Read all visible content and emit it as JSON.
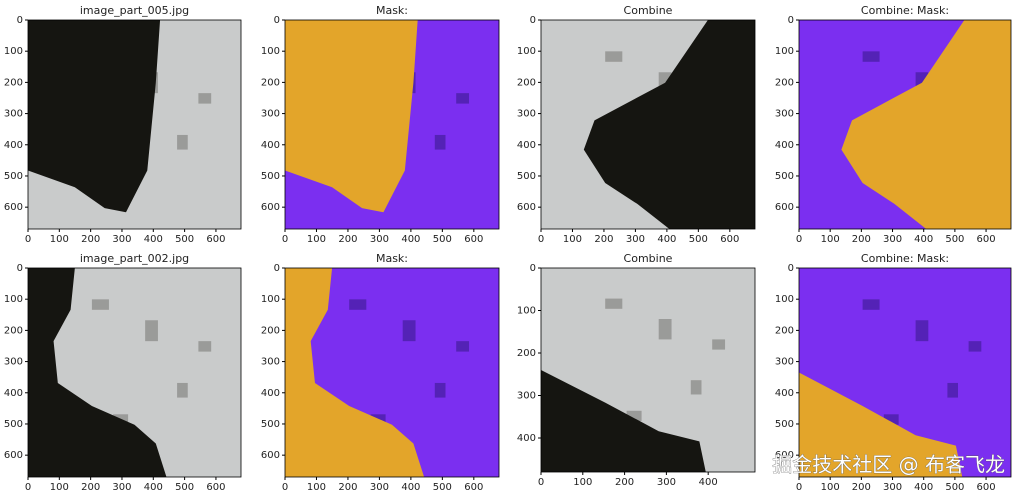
{
  "chart_data": [
    {
      "type": "image",
      "title": "image_part_005.jpg",
      "xlim": [
        0,
        680
      ],
      "ylim": [
        670,
        0
      ],
      "xticks": [
        0,
        100,
        200,
        300,
        400,
        500,
        600
      ],
      "yticks": [
        0,
        100,
        200,
        300,
        400,
        500,
        600
      ]
    },
    {
      "type": "image",
      "title": "Mask:",
      "xlim": [
        0,
        680
      ],
      "ylim": [
        670,
        0
      ],
      "xticks": [
        0,
        100,
        200,
        300,
        400,
        500,
        600
      ],
      "yticks": [
        0,
        100,
        200,
        300,
        400,
        500,
        600
      ]
    },
    {
      "type": "image",
      "title": "Combine",
      "xlim": [
        0,
        680
      ],
      "ylim": [
        670,
        0
      ],
      "xticks": [
        0,
        100,
        200,
        300,
        400,
        500,
        600
      ],
      "yticks": [
        0,
        100,
        200,
        300,
        400,
        500,
        600
      ]
    },
    {
      "type": "image",
      "title": "Combine: Mask:",
      "xlim": [
        0,
        680
      ],
      "ylim": [
        670,
        0
      ],
      "xticks": [
        0,
        100,
        200,
        300,
        400,
        500,
        600
      ],
      "yticks": [
        0,
        100,
        200,
        300,
        400,
        500,
        600
      ]
    },
    {
      "type": "image",
      "title": "image_part_002.jpg",
      "xlim": [
        0,
        680
      ],
      "ylim": [
        670,
        0
      ],
      "xticks": [
        0,
        100,
        200,
        300,
        400,
        500,
        600
      ],
      "yticks": [
        0,
        100,
        200,
        300,
        400,
        500,
        600
      ]
    },
    {
      "type": "image",
      "title": "Mask:",
      "xlim": [
        0,
        680
      ],
      "ylim": [
        670,
        0
      ],
      "xticks": [
        0,
        100,
        200,
        300,
        400,
        500,
        600
      ],
      "yticks": [
        0,
        100,
        200,
        300,
        400,
        500,
        600
      ]
    },
    {
      "type": "image",
      "title": "Combine",
      "xlim": [
        0,
        512
      ],
      "ylim": [
        480,
        0
      ],
      "xticks": [
        0,
        100,
        200,
        300,
        400
      ],
      "yticks": [
        0,
        100,
        200,
        300,
        400
      ]
    },
    {
      "type": "image",
      "title": "Combine: Mask:",
      "xlim": [
        0,
        680
      ],
      "ylim": [
        670,
        0
      ],
      "xticks": [
        0,
        100,
        200,
        300,
        400,
        500,
        600
      ],
      "yticks": [
        0,
        100,
        200,
        300,
        400,
        500,
        600
      ]
    }
  ],
  "watermark": "掘金技术社区 @ 布客飞龙"
}
